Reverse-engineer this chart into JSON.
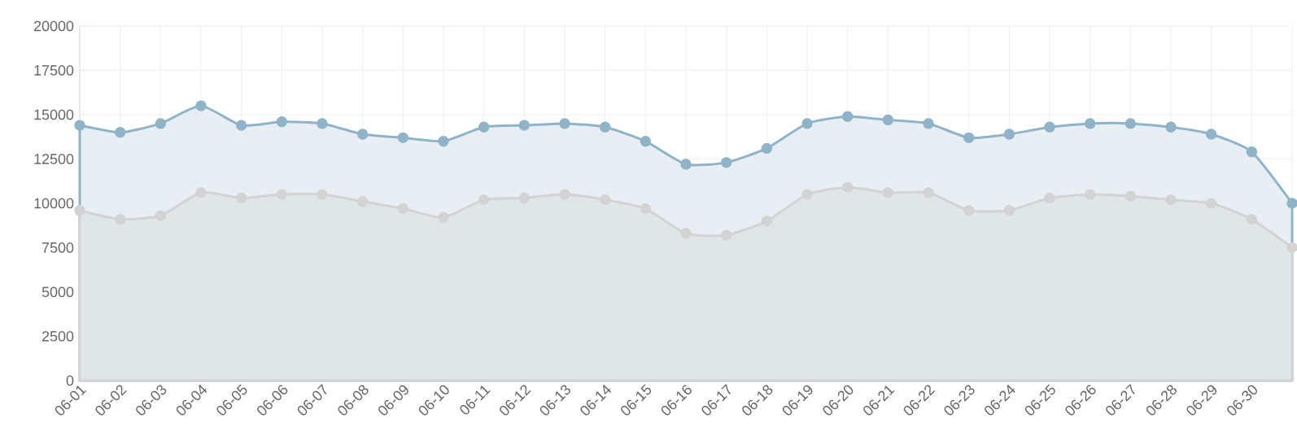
{
  "chart_data": {
    "type": "area",
    "categories": [
      "06-01",
      "06-02",
      "06-03",
      "06-04",
      "06-05",
      "06-06",
      "06-07",
      "06-08",
      "06-09",
      "06-10",
      "06-11",
      "06-12",
      "06-13",
      "06-14",
      "06-15",
      "06-16",
      "06-17",
      "06-18",
      "06-19",
      "06-20",
      "06-21",
      "06-22",
      "06-23",
      "06-24",
      "06-25",
      "06-26",
      "06-27",
      "06-28",
      "06-29",
      "06-30",
      null
    ],
    "series": [
      {
        "color": "#8fb4c8",
        "values": [
          14400,
          14000,
          14500,
          15500,
          14400,
          14600,
          14500,
          13900,
          13700,
          13500,
          14300,
          14400,
          14500,
          14300,
          13500,
          12200,
          12300,
          13100,
          14500,
          14900,
          14700,
          14500,
          13700,
          13900,
          14300,
          14500,
          14500,
          14300,
          13900,
          12900,
          10000
        ]
      },
      {
        "color": "#d3d3d3",
        "values": [
          9600,
          9100,
          9300,
          10600,
          10300,
          10500,
          10500,
          10100,
          9700,
          9200,
          10200,
          10300,
          10500,
          10200,
          9700,
          8300,
          8200,
          9000,
          10500,
          10900,
          10600,
          10600,
          9600,
          9600,
          10300,
          10500,
          10400,
          10200,
          10000,
          9100,
          7500
        ]
      }
    ],
    "ylim": [
      0,
      20000
    ],
    "yticks": [
      0,
      2500,
      5000,
      7500,
      10000,
      12500,
      15000,
      17500,
      20000
    ],
    "grid": true,
    "marker": "circle",
    "line_style": "solid"
  }
}
